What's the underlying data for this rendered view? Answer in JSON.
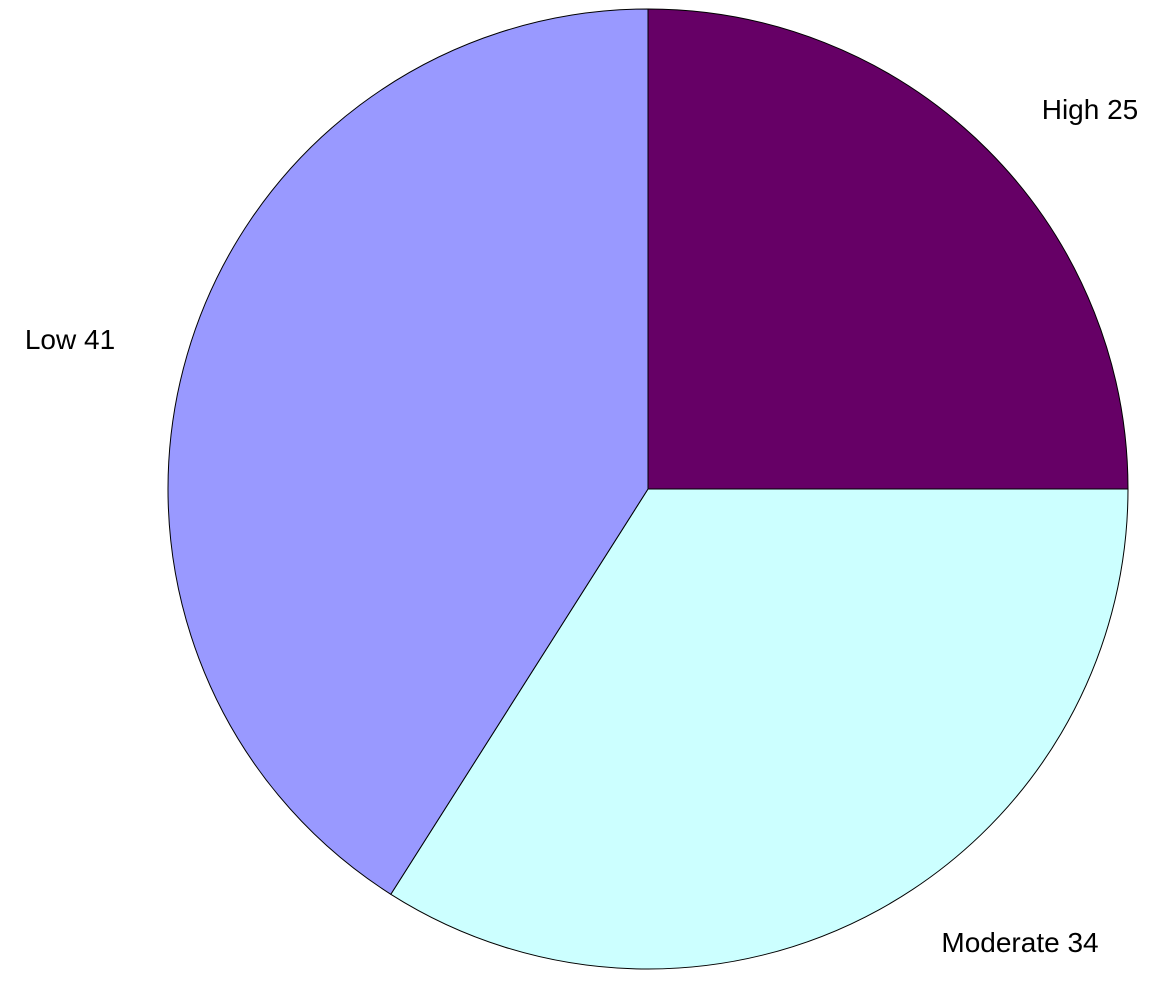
{
  "chart_data": {
    "type": "pie",
    "categories": [
      "High",
      "Moderate",
      "Low"
    ],
    "values": [
      25,
      34,
      41
    ],
    "colors": [
      "#660066",
      "#ccffff",
      "#9999ff"
    ]
  }
}
